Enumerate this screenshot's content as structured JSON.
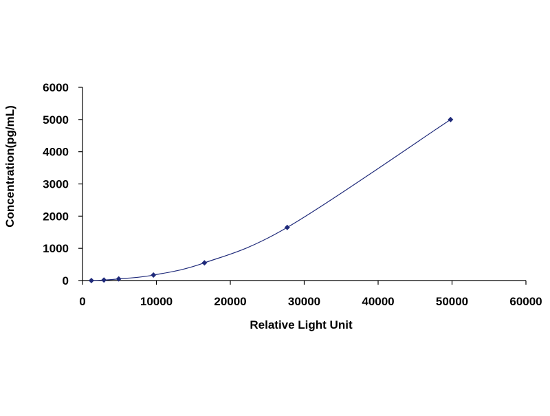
{
  "chart_data": {
    "type": "scatter",
    "title": "",
    "xlabel": "Relative Light Unit",
    "ylabel": "Concentration(pg/mL)",
    "xlim": [
      0,
      60000
    ],
    "ylim": [
      0,
      6000
    ],
    "xticks": [
      "0",
      "10000",
      "20000",
      "30000",
      "40000",
      "50000",
      "60000"
    ],
    "yticks": [
      "0",
      "1000",
      "2000",
      "3000",
      "4000",
      "5000",
      "6000"
    ],
    "grid": false,
    "legend": "none",
    "trendline": "smooth fitted curve through points",
    "series": [
      {
        "x": [
          1200,
          2900,
          4900,
          9600,
          16500,
          27700,
          49800
        ],
        "y": [
          0,
          15,
          50,
          170,
          550,
          1650,
          5000
        ],
        "color": "#1f2a7a"
      }
    ]
  }
}
